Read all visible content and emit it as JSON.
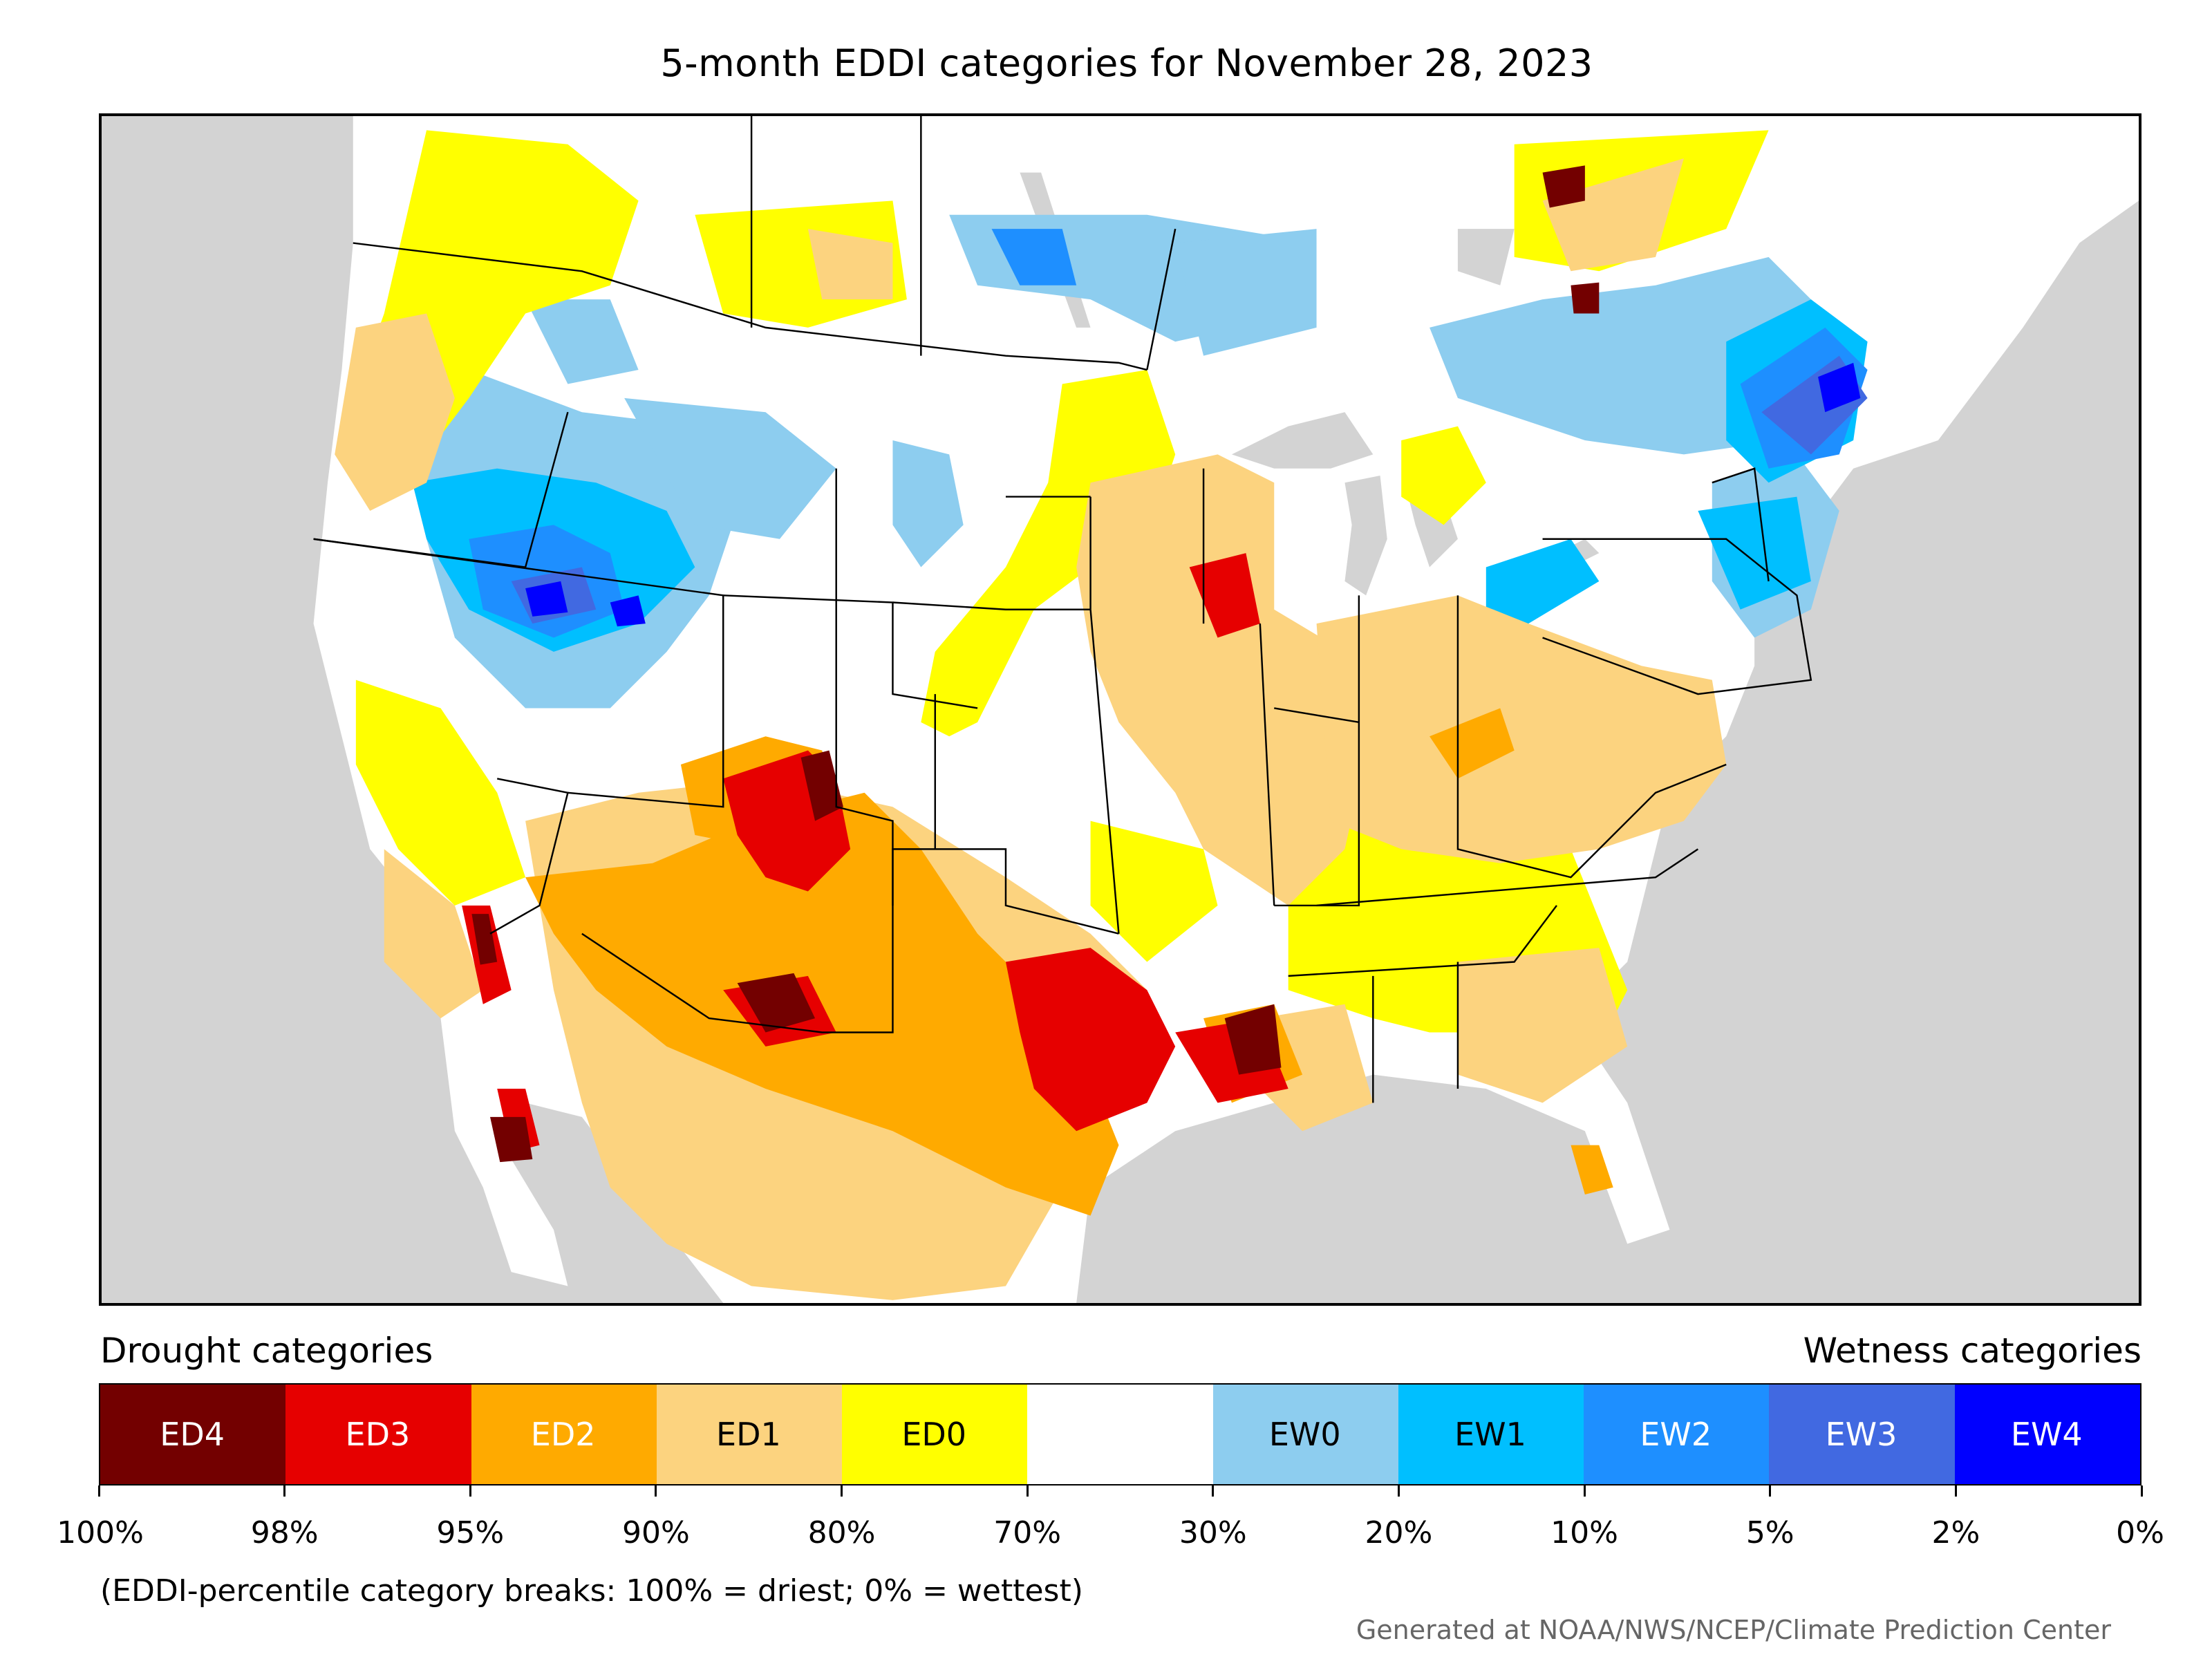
{
  "title": "5-month EDDI categories for November 28, 2023",
  "legend": {
    "drought_heading": "Drought categories",
    "wetness_heading": "Wetness categories",
    "categories": [
      {
        "label": "ED4",
        "color": "#730000",
        "text_color": "#ffffff"
      },
      {
        "label": "ED3",
        "color": "#e60000",
        "text_color": "#ffffff"
      },
      {
        "label": "ED2",
        "color": "#ffaa00",
        "text_color": "#ffffff"
      },
      {
        "label": "ED1",
        "color": "#fcd37f",
        "text_color": "#000000"
      },
      {
        "label": "ED0",
        "color": "#ffff00",
        "text_color": "#000000"
      },
      {
        "label": "",
        "color": "#ffffff",
        "text_color": "#000000"
      },
      {
        "label": "EW0",
        "color": "#8dcdef",
        "text_color": "#000000"
      },
      {
        "label": "EW1",
        "color": "#00bfff",
        "text_color": "#000000"
      },
      {
        "label": "EW2",
        "color": "#1e8fff",
        "text_color": "#ffffff"
      },
      {
        "label": "EW3",
        "color": "#4169e1",
        "text_color": "#ffffff"
      },
      {
        "label": "EW4",
        "color": "#0000ff",
        "text_color": "#ffffff"
      }
    ],
    "breaks": [
      "100%",
      "98%",
      "95%",
      "90%",
      "80%",
      "70%",
      "30%",
      "20%",
      "10%",
      "5%",
      "2%",
      "0%"
    ]
  },
  "note": "(EDDI-percentile category breaks: 100% = driest; 0% = wettest)",
  "credit": "Generated at NOAA/NWS/NCEP/Climate Prediction Center",
  "colors": {
    "background_outside": "#d3d3d3",
    "ED4": "#730000",
    "ED3": "#e60000",
    "ED2": "#ffaa00",
    "ED1": "#fcd37f",
    "ED0": "#ffff00",
    "neutral": "#ffffff",
    "EW0": "#8dcdef",
    "EW1": "#00bfff",
    "EW2": "#1e8fff",
    "EW3": "#4169e1",
    "EW4": "#0000ff"
  }
}
